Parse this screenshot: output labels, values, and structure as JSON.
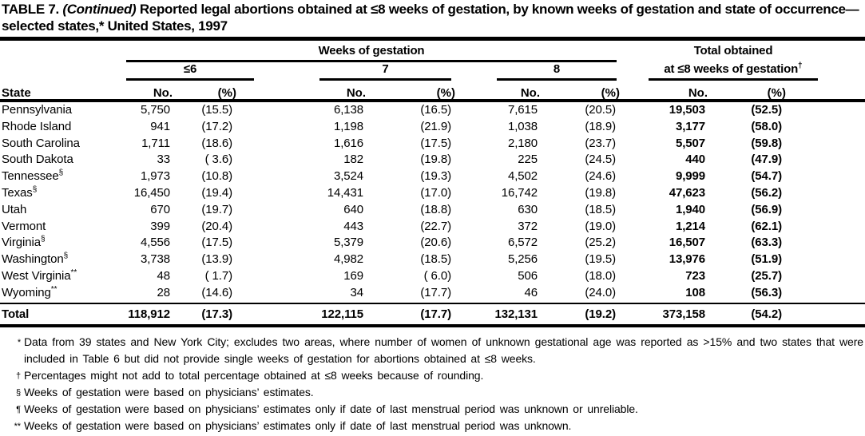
{
  "title": {
    "label": "TABLE 7.",
    "continued": "(Continued)",
    "rest": " Reported legal abortions obtained at ≤8 weeks of gestation, by known weeks of gestation and state of occurrence— selected states,* United States, 1997"
  },
  "header": {
    "state_label": "State",
    "weeks_group_label": "Weeks of gestation",
    "total_label_line1": "Total obtained",
    "total_label_line2": "at ≤8 weeks of gestation",
    "total_label_marker": "†",
    "subgroups": [
      "≤6",
      "7",
      "8"
    ],
    "no_label": "No.",
    "pct_label": "(%)"
  },
  "rows": [
    {
      "state": "Pennsylvania",
      "marker": "",
      "no6": "5,750",
      "pct6": "(15.5)",
      "no7": "6,138",
      "pct7": "(16.5)",
      "no8": "7,615",
      "pct8": "(20.5)",
      "total_no": "19,503",
      "total_pct": "(52.5)"
    },
    {
      "state": "Rhode Island",
      "marker": "",
      "no6": "941",
      "pct6": "(17.2)",
      "no7": "1,198",
      "pct7": "(21.9)",
      "no8": "1,038",
      "pct8": "(18.9)",
      "total_no": "3,177",
      "total_pct": "(58.0)"
    },
    {
      "state": "South Carolina",
      "marker": "",
      "no6": "1,711",
      "pct6": "(18.6)",
      "no7": "1,616",
      "pct7": "(17.5)",
      "no8": "2,180",
      "pct8": "(23.7)",
      "total_no": "5,507",
      "total_pct": "(59.8)"
    },
    {
      "state": "South Dakota",
      "marker": "",
      "no6": "33",
      "pct6": "( 3.6)",
      "no7": "182",
      "pct7": "(19.8)",
      "no8": "225",
      "pct8": "(24.5)",
      "total_no": "440",
      "total_pct": "(47.9)"
    },
    {
      "state": "Tennessee",
      "marker": "§",
      "no6": "1,973",
      "pct6": "(10.8)",
      "no7": "3,524",
      "pct7": "(19.3)",
      "no8": "4,502",
      "pct8": "(24.6)",
      "total_no": "9,999",
      "total_pct": "(54.7)"
    },
    {
      "state": "Texas",
      "marker": "§",
      "no6": "16,450",
      "pct6": "(19.4)",
      "no7": "14,431",
      "pct7": "(17.0)",
      "no8": "16,742",
      "pct8": "(19.8)",
      "total_no": "47,623",
      "total_pct": "(56.2)"
    },
    {
      "state": "Utah",
      "marker": "",
      "no6": "670",
      "pct6": "(19.7)",
      "no7": "640",
      "pct7": "(18.8)",
      "no8": "630",
      "pct8": "(18.5)",
      "total_no": "1,940",
      "total_pct": "(56.9)"
    },
    {
      "state": "Vermont",
      "marker": "",
      "no6": "399",
      "pct6": "(20.4)",
      "no7": "443",
      "pct7": "(22.7)",
      "no8": "372",
      "pct8": "(19.0)",
      "total_no": "1,214",
      "total_pct": "(62.1)"
    },
    {
      "state": "Virginia",
      "marker": "§",
      "no6": "4,556",
      "pct6": "(17.5)",
      "no7": "5,379",
      "pct7": "(20.6)",
      "no8": "6,572",
      "pct8": "(25.2)",
      "total_no": "16,507",
      "total_pct": "(63.3)"
    },
    {
      "state": "Washington",
      "marker": "§",
      "no6": "3,738",
      "pct6": "(13.9)",
      "no7": "4,982",
      "pct7": "(18.5)",
      "no8": "5,256",
      "pct8": "(19.5)",
      "total_no": "13,976",
      "total_pct": "(51.9)"
    },
    {
      "state": "West Virginia",
      "marker": "**",
      "no6": "48",
      "pct6": "( 1.7)",
      "no7": "169",
      "pct7": "( 6.0)",
      "no8": "506",
      "pct8": "(18.0)",
      "total_no": "723",
      "total_pct": "(25.7)"
    },
    {
      "state": "Wyoming",
      "marker": "**",
      "no6": "28",
      "pct6": "(14.6)",
      "no7": "34",
      "pct7": "(17.7)",
      "no8": "46",
      "pct8": "(24.0)",
      "total_no": "108",
      "total_pct": "(56.3)"
    }
  ],
  "total_row": {
    "state": "Total",
    "marker": "",
    "no6": "118,912",
    "pct6": "(17.3)",
    "no7": "122,115",
    "pct7": "(17.7)",
    "no8": "132,131",
    "pct8": "(19.2)",
    "total_no": "373,158",
    "total_pct": "(54.2)"
  },
  "footnotes": [
    {
      "symbol": "*",
      "text": "Data from 39 states and New York City; excludes two areas, where number of women of unknown gestational age was reported as >15% and two states that were included in Table 6 but did not provide single weeks of gestation for abortions obtained at ≤8 weeks."
    },
    {
      "symbol": "†",
      "text": "Percentages might not add to total percentage obtained at ≤8 weeks because of rounding."
    },
    {
      "symbol": "§",
      "text": "Weeks of gestation were based on physicians’ estimates."
    },
    {
      "symbol": "¶",
      "text": "Weeks of gestation were based on physicians’ estimates only if date of last menstrual period was unknown or unreliable."
    },
    {
      "symbol": "**",
      "text": "Weeks of gestation were based on physicians’ estimates only if date of last menstrual period was unknown."
    }
  ]
}
